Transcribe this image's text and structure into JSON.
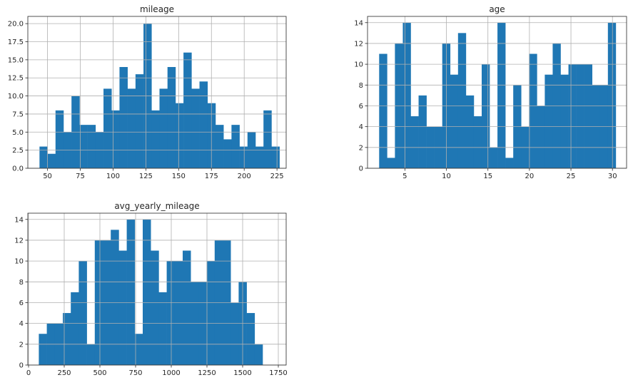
{
  "chart_data": [
    {
      "type": "bar",
      "title": "mileage",
      "xlim": [
        35,
        232
      ],
      "ylim": [
        0,
        21
      ],
      "xticks": [
        50,
        75,
        100,
        125,
        150,
        175,
        200,
        225
      ],
      "yticks": [
        0.0,
        2.5,
        5.0,
        7.5,
        10.0,
        12.5,
        15.0,
        17.5,
        20.0
      ],
      "ytick_decimals": 1,
      "grid": true,
      "bin_start": 43.9,
      "bin_width": 6.1,
      "values": [
        3,
        2,
        8,
        5,
        10,
        6,
        6,
        5,
        11,
        8,
        14,
        11,
        13,
        20,
        8,
        11,
        14,
        9,
        16,
        11,
        12,
        9,
        6,
        4,
        6,
        3,
        5,
        3,
        8,
        3
      ]
    },
    {
      "type": "bar",
      "title": "age",
      "xlim": [
        0.5,
        31.7
      ],
      "ylim": [
        0,
        14.6
      ],
      "xticks": [
        5,
        10,
        15,
        20,
        25,
        30
      ],
      "yticks": [
        0,
        2,
        4,
        6,
        8,
        10,
        12,
        14
      ],
      "ytick_decimals": 0,
      "grid": true,
      "bin_start": 1.9,
      "bin_width": 0.95,
      "values": [
        11,
        1,
        12,
        14,
        5,
        7,
        4,
        4,
        12,
        9,
        13,
        7,
        5,
        10,
        2,
        14,
        1,
        8,
        4,
        11,
        6,
        9,
        12,
        9,
        10,
        10,
        10,
        8,
        8,
        14
      ]
    },
    {
      "type": "bar",
      "title": "avg_yearly_mileage",
      "xlim": [
        -5,
        1805
      ],
      "ylim": [
        0,
        14.6
      ],
      "xticks": [
        0,
        250,
        500,
        750,
        1000,
        1250,
        1500,
        1750
      ],
      "yticks": [
        0,
        2,
        4,
        6,
        8,
        10,
        12,
        14
      ],
      "ytick_decimals": 0,
      "grid": true,
      "bin_start": 72,
      "bin_width": 56,
      "values": [
        3,
        4,
        4,
        5,
        7,
        10,
        2,
        12,
        12,
        13,
        11,
        14,
        3,
        14,
        11,
        7,
        10,
        10,
        11,
        8,
        8,
        10,
        12,
        12,
        6,
        8,
        5,
        2,
        0,
        0
      ]
    }
  ],
  "colors": {
    "bar": "#1f77b4",
    "grid": "#b0b0b0",
    "axis": "#262626"
  }
}
